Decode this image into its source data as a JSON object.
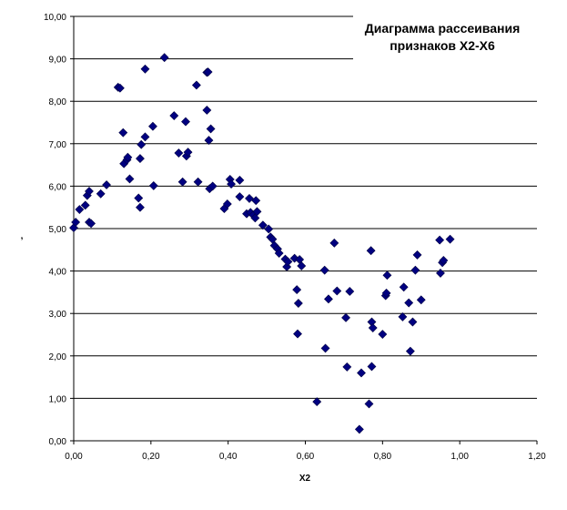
{
  "chart_data": {
    "type": "scatter",
    "title_lines": [
      "Диаграмма рассеивания",
      "признаков X2-X6"
    ],
    "xlabel": "X2",
    "ylabel": ",",
    "xlim": [
      0,
      1.2
    ],
    "ylim": [
      0,
      10
    ],
    "x_ticks": [
      "0,00",
      "0,20",
      "0,40",
      "0,60",
      "0,80",
      "1,00",
      "1,20"
    ],
    "y_ticks": [
      "0,00",
      "1,00",
      "2,00",
      "3,00",
      "4,00",
      "5,00",
      "6,00",
      "7,00",
      "8,00",
      "9,00",
      "10,00"
    ],
    "grid": "horizontal",
    "marker": "diamond",
    "marker_color": "#000080",
    "points": [
      [
        0.0,
        5.02
      ],
      [
        0.005,
        5.15
      ],
      [
        0.015,
        5.45
      ],
      [
        0.03,
        5.55
      ],
      [
        0.035,
        5.78
      ],
      [
        0.04,
        5.88
      ],
      [
        0.04,
        5.15
      ],
      [
        0.045,
        5.12
      ],
      [
        0.07,
        5.82
      ],
      [
        0.085,
        6.03
      ],
      [
        0.115,
        8.33
      ],
      [
        0.12,
        8.31
      ],
      [
        0.128,
        7.26
      ],
      [
        0.13,
        6.53
      ],
      [
        0.138,
        6.62
      ],
      [
        0.14,
        6.68
      ],
      [
        0.145,
        6.17
      ],
      [
        0.168,
        5.72
      ],
      [
        0.172,
        5.5
      ],
      [
        0.172,
        6.65
      ],
      [
        0.175,
        6.98
      ],
      [
        0.185,
        7.16
      ],
      [
        0.185,
        8.76
      ],
      [
        0.205,
        7.41
      ],
      [
        0.207,
        6.01
      ],
      [
        0.235,
        9.03
      ],
      [
        0.26,
        7.66
      ],
      [
        0.272,
        6.78
      ],
      [
        0.282,
        6.1
      ],
      [
        0.29,
        7.52
      ],
      [
        0.292,
        6.71
      ],
      [
        0.296,
        6.8
      ],
      [
        0.318,
        8.38
      ],
      [
        0.322,
        6.1
      ],
      [
        0.345,
        7.79
      ],
      [
        0.345,
        8.68
      ],
      [
        0.348,
        8.69
      ],
      [
        0.35,
        7.08
      ],
      [
        0.352,
        5.94
      ],
      [
        0.355,
        7.35
      ],
      [
        0.36,
        6.0
      ],
      [
        0.39,
        5.47
      ],
      [
        0.398,
        5.58
      ],
      [
        0.405,
        6.16
      ],
      [
        0.408,
        6.05
      ],
      [
        0.43,
        5.75
      ],
      [
        0.43,
        6.14
      ],
      [
        0.448,
        5.35
      ],
      [
        0.455,
        5.71
      ],
      [
        0.458,
        5.38
      ],
      [
        0.465,
        5.32
      ],
      [
        0.47,
        5.25
      ],
      [
        0.472,
        5.66
      ],
      [
        0.475,
        5.4
      ],
      [
        0.49,
        5.08
      ],
      [
        0.505,
        4.99
      ],
      [
        0.51,
        4.8
      ],
      [
        0.515,
        4.75
      ],
      [
        0.52,
        4.6
      ],
      [
        0.528,
        4.52
      ],
      [
        0.532,
        4.42
      ],
      [
        0.548,
        4.28
      ],
      [
        0.552,
        4.1
      ],
      [
        0.555,
        4.22
      ],
      [
        0.572,
        4.3
      ],
      [
        0.578,
        3.56
      ],
      [
        0.58,
        2.52
      ],
      [
        0.582,
        3.24
      ],
      [
        0.585,
        4.27
      ],
      [
        0.59,
        4.12
      ],
      [
        0.63,
        0.92
      ],
      [
        0.65,
        4.02
      ],
      [
        0.652,
        2.18
      ],
      [
        0.66,
        3.34
      ],
      [
        0.675,
        4.66
      ],
      [
        0.682,
        3.53
      ],
      [
        0.705,
        2.9
      ],
      [
        0.708,
        1.74
      ],
      [
        0.715,
        3.52
      ],
      [
        0.74,
        0.27
      ],
      [
        0.745,
        1.6
      ],
      [
        0.765,
        0.87
      ],
      [
        0.77,
        4.48
      ],
      [
        0.772,
        1.75
      ],
      [
        0.772,
        2.8
      ],
      [
        0.775,
        2.66
      ],
      [
        0.8,
        2.51
      ],
      [
        0.808,
        3.42
      ],
      [
        0.81,
        3.48
      ],
      [
        0.812,
        3.9
      ],
      [
        0.852,
        2.92
      ],
      [
        0.855,
        3.62
      ],
      [
        0.868,
        3.25
      ],
      [
        0.872,
        2.11
      ],
      [
        0.878,
        2.8
      ],
      [
        0.885,
        4.02
      ],
      [
        0.89,
        4.38
      ],
      [
        0.9,
        3.32
      ],
      [
        0.948,
        4.73
      ],
      [
        0.95,
        3.95
      ],
      [
        0.955,
        4.2
      ],
      [
        0.958,
        4.25
      ],
      [
        0.975,
        4.75
      ]
    ]
  }
}
